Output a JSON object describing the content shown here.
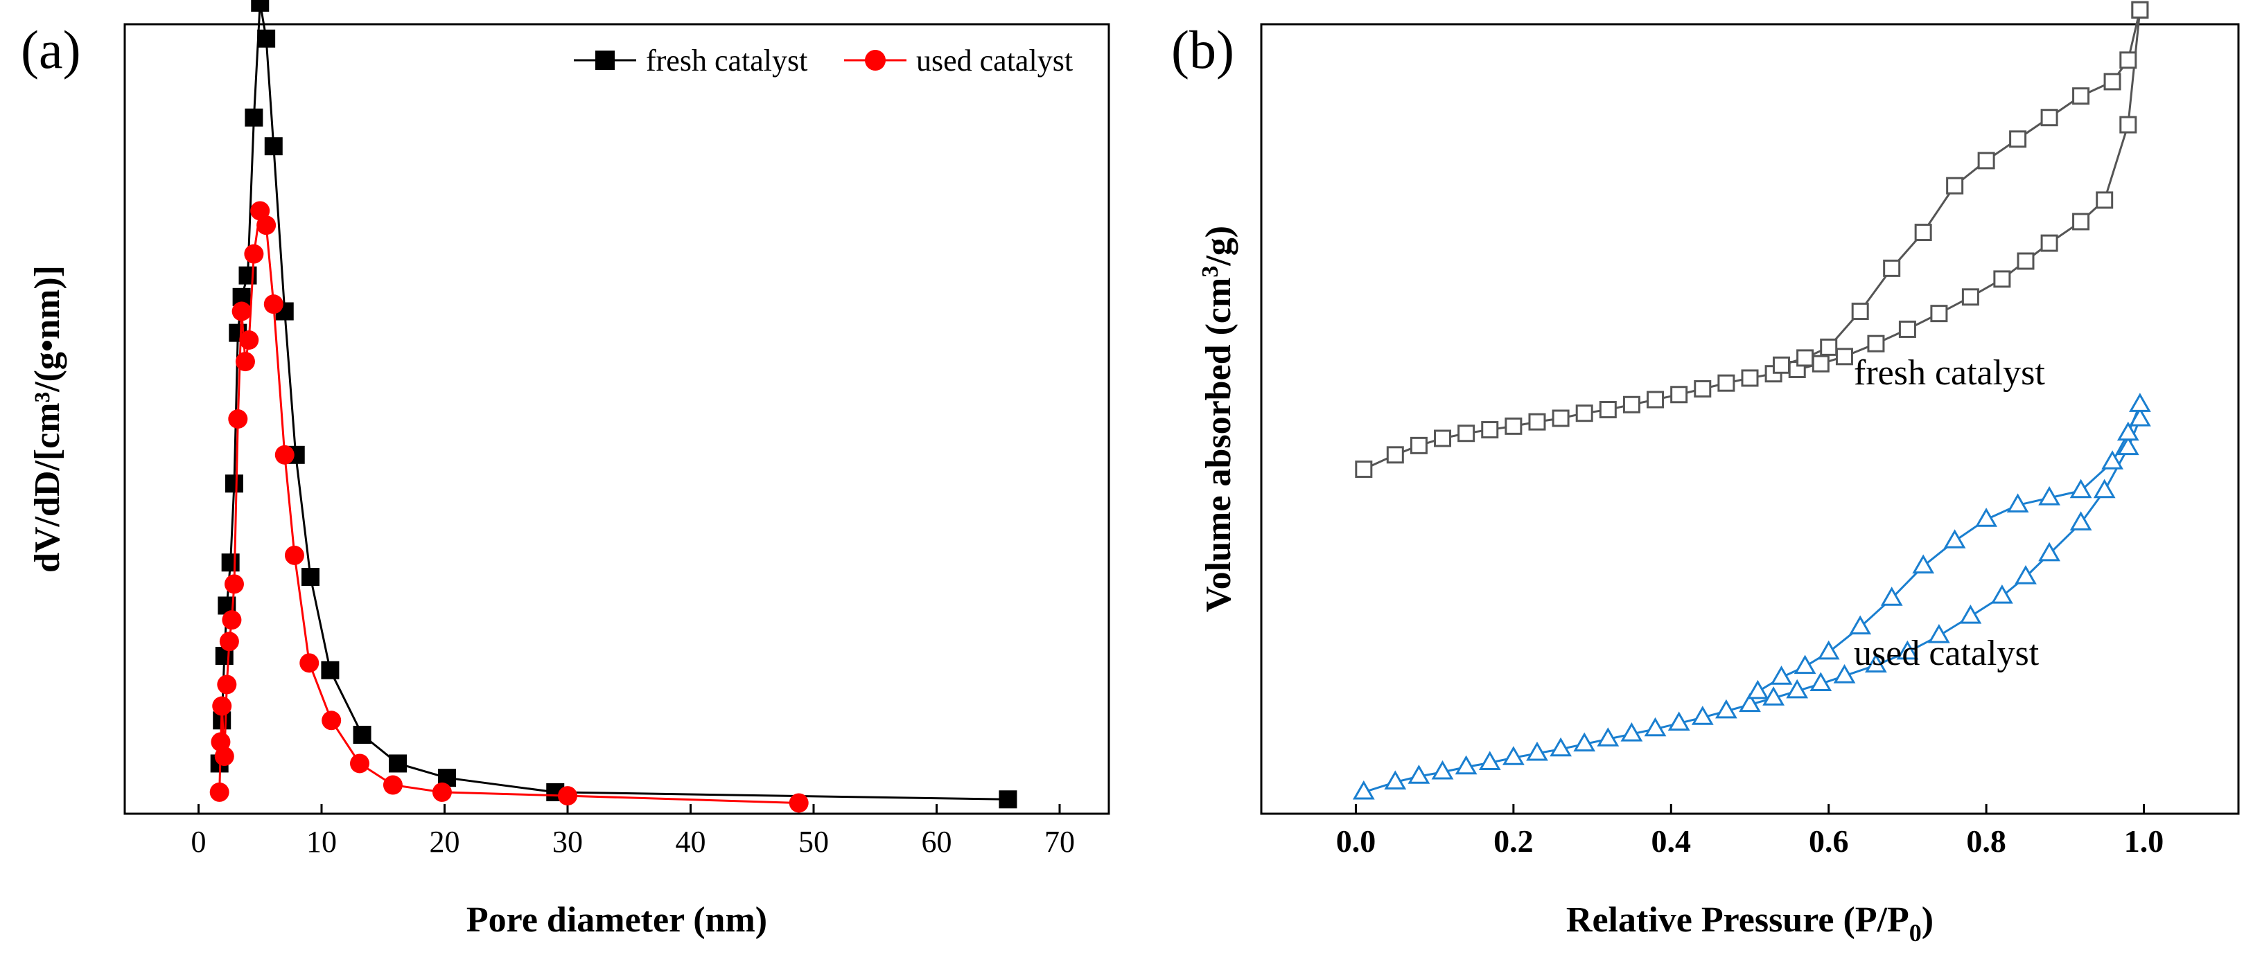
{
  "chart_data": [
    {
      "panel": "(a)",
      "type": "line",
      "xlabel": "Pore diameter (nm)",
      "ylabel": "dV/dD/[cm³/(g•nm)]",
      "xlim": [
        -6,
        74
      ],
      "ylim": [
        0,
        1.1
      ],
      "xticks": [
        0,
        10,
        20,
        30,
        40,
        50,
        60,
        70
      ],
      "yticks_shown": false,
      "legend_position": "top-right",
      "series": [
        {
          "name": "fresh catalyst",
          "color": "#000000",
          "marker": "filled-square",
          "x": [
            1.7,
            1.9,
            2.1,
            2.3,
            2.6,
            2.9,
            3.2,
            3.5,
            4.0,
            4.5,
            5.0,
            5.5,
            6.1,
            7.0,
            7.9,
            9.1,
            10.7,
            13.3,
            16.2,
            20.2,
            29.0,
            65.8
          ],
          "y": [
            0.07,
            0.13,
            0.22,
            0.29,
            0.35,
            0.46,
            0.67,
            0.72,
            0.75,
            0.97,
            1.13,
            1.08,
            0.93,
            0.7,
            0.5,
            0.33,
            0.2,
            0.11,
            0.07,
            0.05,
            0.03,
            0.02
          ]
        },
        {
          "name": "used catalyst",
          "color": "#ff0000",
          "marker": "filled-circle",
          "x": [
            1.7,
            1.8,
            1.9,
            2.1,
            2.3,
            2.5,
            2.7,
            2.9,
            3.2,
            3.5,
            3.8,
            4.1,
            4.5,
            5.0,
            5.5,
            6.1,
            7.0,
            7.8,
            9.0,
            10.8,
            13.1,
            15.8,
            19.8,
            30.0,
            48.8
          ],
          "y": [
            0.03,
            0.1,
            0.15,
            0.08,
            0.18,
            0.24,
            0.27,
            0.32,
            0.55,
            0.7,
            0.63,
            0.66,
            0.78,
            0.84,
            0.82,
            0.71,
            0.5,
            0.36,
            0.21,
            0.13,
            0.07,
            0.04,
            0.03,
            0.025,
            0.015
          ]
        }
      ]
    },
    {
      "panel": "(b)",
      "type": "line",
      "xlabel": "Relative Pressure (P/P",
      "xlabel_sub": "0",
      "xlabel_end": ")",
      "ylabel": "Volume absorbed (cm",
      "ylabel_sup": "3",
      "ylabel_end": "/g)",
      "xlim": [
        -0.12,
        1.12
      ],
      "ylim": [
        0,
        1.1
      ],
      "xticks": [
        "0.0",
        "0.2",
        "0.4",
        "0.6",
        "0.8",
        "1.0"
      ],
      "yticks_shown": false,
      "annotations": [
        "fresh catalyst",
        "used catalyst"
      ],
      "series": [
        {
          "name": "fresh catalyst",
          "branch": "adsorption",
          "color": "#555555",
          "marker": "open-square",
          "x": [
            0.01,
            0.05,
            0.08,
            0.11,
            0.14,
            0.17,
            0.2,
            0.23,
            0.26,
            0.29,
            0.32,
            0.35,
            0.38,
            0.41,
            0.44,
            0.47,
            0.5,
            0.53,
            0.56,
            0.59,
            0.62,
            0.66,
            0.7,
            0.74,
            0.78,
            0.82,
            0.85,
            0.88,
            0.92,
            0.95,
            0.98,
            0.995
          ],
          "y": [
            0.48,
            0.5,
            0.513,
            0.523,
            0.53,
            0.535,
            0.54,
            0.546,
            0.551,
            0.558,
            0.563,
            0.57,
            0.577,
            0.584,
            0.592,
            0.6,
            0.607,
            0.613,
            0.619,
            0.627,
            0.637,
            0.655,
            0.675,
            0.697,
            0.72,
            0.745,
            0.77,
            0.795,
            0.825,
            0.855,
            0.96,
            1.12
          ]
        },
        {
          "name": "fresh catalyst",
          "branch": "desorption",
          "color": "#555555",
          "marker": "open-square",
          "x": [
            0.995,
            0.98,
            0.96,
            0.92,
            0.88,
            0.84,
            0.8,
            0.76,
            0.72,
            0.68,
            0.64,
            0.6,
            0.57,
            0.54
          ],
          "y": [
            1.12,
            1.05,
            1.02,
            1.0,
            0.97,
            0.94,
            0.91,
            0.875,
            0.81,
            0.76,
            0.7,
            0.65,
            0.635,
            0.625
          ]
        },
        {
          "name": "used catalyst",
          "branch": "adsorption",
          "color": "#1a7fd0",
          "marker": "open-triangle",
          "x": [
            0.01,
            0.05,
            0.08,
            0.11,
            0.14,
            0.17,
            0.2,
            0.23,
            0.26,
            0.29,
            0.32,
            0.35,
            0.38,
            0.41,
            0.44,
            0.47,
            0.5,
            0.53,
            0.56,
            0.59,
            0.62,
            0.66,
            0.7,
            0.74,
            0.78,
            0.82,
            0.85,
            0.88,
            0.92,
            0.95,
            0.98,
            0.995
          ],
          "y": [
            0.03,
            0.044,
            0.052,
            0.058,
            0.065,
            0.071,
            0.078,
            0.084,
            0.09,
            0.097,
            0.104,
            0.111,
            0.118,
            0.126,
            0.134,
            0.143,
            0.152,
            0.161,
            0.171,
            0.181,
            0.192,
            0.207,
            0.225,
            0.248,
            0.275,
            0.303,
            0.33,
            0.362,
            0.405,
            0.45,
            0.51,
            0.55
          ]
        },
        {
          "name": "used catalyst",
          "branch": "desorption",
          "color": "#1a7fd0",
          "marker": "open-triangle",
          "x": [
            0.995,
            0.98,
            0.96,
            0.92,
            0.88,
            0.84,
            0.8,
            0.76,
            0.72,
            0.68,
            0.64,
            0.6,
            0.57,
            0.54,
            0.51
          ],
          "y": [
            0.57,
            0.53,
            0.49,
            0.45,
            0.44,
            0.43,
            0.41,
            0.38,
            0.345,
            0.3,
            0.26,
            0.225,
            0.205,
            0.19,
            0.17
          ]
        }
      ]
    }
  ]
}
